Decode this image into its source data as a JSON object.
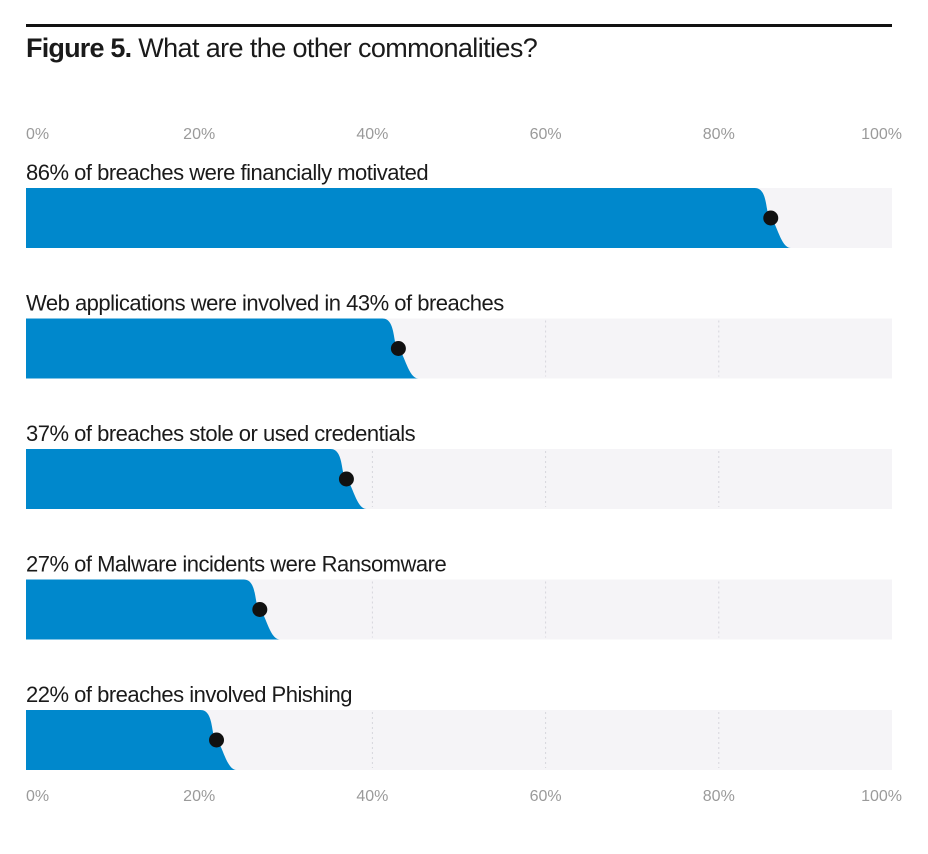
{
  "figure": {
    "label": "Figure 5.",
    "question": "What are the other commonalities?"
  },
  "chart_data": {
    "type": "bar",
    "orientation": "horizontal",
    "title": "Figure 5. What are the other commonalities?",
    "xlim": [
      0,
      100
    ],
    "tick_labels": [
      "0%",
      "20%",
      "40%",
      "60%",
      "80%",
      "100%"
    ],
    "tick_values": [
      0,
      20,
      40,
      60,
      80,
      100
    ],
    "categories": [
      "86% of breaches were financially motivated",
      "Web applications were involved in 43% of breaches",
      "37% of breaches stole or used credentials",
      "27% of Malware incidents were Ransomware",
      "22% of breaches involved Phishing"
    ],
    "values": [
      86,
      43,
      37,
      27,
      22
    ],
    "colors": {
      "bar": "#0088cc",
      "track": "#f5f4f7",
      "point": "#111111",
      "tick": "#9a9a9a"
    }
  }
}
